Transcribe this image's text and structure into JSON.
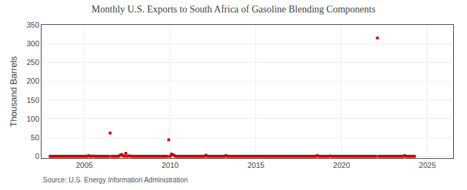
{
  "chart_data": {
    "type": "scatter",
    "title": "Monthly U.S. Exports to South Africa of Gasoline Blending Components",
    "ylabel": "Thousand Barrels",
    "annotations": [
      "Source: U.S. Energy Information Administration"
    ],
    "color": "#cc0000",
    "marker": "square",
    "grid": true,
    "xlim": [
      2002.5,
      2026.5
    ],
    "xticks": [
      2005,
      2010,
      2015,
      2020,
      2025
    ],
    "ylim": [
      -5,
      350
    ],
    "yticks": [
      0,
      50,
      100,
      150,
      200,
      250,
      300,
      350
    ],
    "x": [
      2003.0,
      2003.083,
      2003.167,
      2003.25,
      2003.333,
      2003.417,
      2003.5,
      2003.583,
      2003.667,
      2003.75,
      2003.833,
      2003.917,
      2004.0,
      2004.083,
      2004.167,
      2004.25,
      2004.333,
      2004.417,
      2004.5,
      2004.583,
      2004.667,
      2004.75,
      2004.833,
      2004.917,
      2005.0,
      2005.083,
      2005.167,
      2005.25,
      2005.333,
      2005.417,
      2005.5,
      2005.583,
      2005.667,
      2005.75,
      2005.833,
      2005.917,
      2006.0,
      2006.083,
      2006.167,
      2006.25,
      2006.333,
      2006.417,
      2006.5,
      2006.583,
      2006.667,
      2006.75,
      2006.833,
      2006.917,
      2007.0,
      2007.083,
      2007.167,
      2007.25,
      2007.333,
      2007.417,
      2007.5,
      2007.583,
      2007.667,
      2007.75,
      2007.833,
      2007.917,
      2008.0,
      2008.083,
      2008.167,
      2008.25,
      2008.333,
      2008.417,
      2008.5,
      2008.583,
      2008.667,
      2008.75,
      2008.833,
      2008.917,
      2009.0,
      2009.083,
      2009.167,
      2009.25,
      2009.333,
      2009.417,
      2009.5,
      2009.583,
      2009.667,
      2009.75,
      2009.833,
      2009.917,
      2010.0,
      2010.083,
      2010.167,
      2010.25,
      2010.333,
      2010.417,
      2010.5,
      2010.583,
      2010.667,
      2010.75,
      2010.833,
      2010.917,
      2011.0,
      2011.083,
      2011.167,
      2011.25,
      2011.333,
      2011.417,
      2011.5,
      2011.583,
      2011.667,
      2011.75,
      2011.833,
      2011.917,
      2012.0,
      2012.083,
      2012.167,
      2012.25,
      2012.333,
      2012.417,
      2012.5,
      2012.583,
      2012.667,
      2012.75,
      2012.833,
      2012.917,
      2013.0,
      2013.083,
      2013.167,
      2013.25,
      2013.333,
      2013.417,
      2013.5,
      2013.583,
      2013.667,
      2013.75,
      2013.833,
      2013.917,
      2014.0,
      2014.083,
      2014.167,
      2014.25,
      2014.333,
      2014.417,
      2014.5,
      2014.583,
      2014.667,
      2014.75,
      2014.833,
      2014.917,
      2015.0,
      2015.083,
      2015.167,
      2015.25,
      2015.333,
      2015.417,
      2015.5,
      2015.583,
      2015.667,
      2015.75,
      2015.833,
      2015.917,
      2016.0,
      2016.083,
      2016.167,
      2016.25,
      2016.333,
      2016.417,
      2016.5,
      2016.583,
      2016.667,
      2016.75,
      2016.833,
      2016.917,
      2017.0,
      2017.083,
      2017.167,
      2017.25,
      2017.333,
      2017.417,
      2017.5,
      2017.583,
      2017.667,
      2017.75,
      2017.833,
      2017.917,
      2018.0,
      2018.083,
      2018.167,
      2018.25,
      2018.333,
      2018.417,
      2018.5,
      2018.583,
      2018.667,
      2018.75,
      2018.833,
      2018.917,
      2019.0,
      2019.083,
      2019.167,
      2019.25,
      2019.333,
      2019.417,
      2019.5,
      2019.583,
      2019.667,
      2019.75,
      2019.833,
      2019.917,
      2020.0,
      2020.083,
      2020.167,
      2020.25,
      2020.333,
      2020.417,
      2020.5,
      2020.583,
      2020.667,
      2020.75,
      2020.833,
      2020.917,
      2021.0,
      2021.083,
      2021.167,
      2021.25,
      2021.333,
      2021.417,
      2021.5,
      2021.583,
      2021.667,
      2021.75,
      2021.833,
      2021.917,
      2022.0,
      2022.083,
      2022.167,
      2022.25,
      2022.333,
      2022.417,
      2022.5,
      2022.583,
      2022.667,
      2022.75,
      2022.833,
      2022.917,
      2023.0,
      2023.083,
      2023.167,
      2023.25,
      2023.333,
      2023.417,
      2023.5,
      2023.583,
      2023.667,
      2023.75,
      2023.833,
      2023.917,
      2024.0,
      2024.083,
      2024.167,
      2024.25
    ],
    "values": [
      0,
      0,
      0,
      0,
      0,
      0,
      0,
      0,
      0,
      0,
      0,
      0,
      0,
      0,
      0,
      0,
      0,
      0,
      0,
      0,
      0,
      0,
      0,
      0,
      0,
      0,
      0,
      2,
      0,
      0,
      1,
      0,
      0,
      0,
      0,
      0,
      0,
      0,
      0,
      0,
      0,
      0,
      62,
      0,
      0,
      0,
      0,
      0,
      0,
      3,
      5,
      2,
      0,
      8,
      0,
      1,
      1,
      0,
      0,
      0,
      0,
      0,
      0,
      0,
      0,
      0,
      0,
      0,
      0,
      0,
      0,
      0,
      0,
      0,
      0,
      0,
      0,
      0,
      0,
      0,
      0,
      0,
      0,
      44,
      0,
      6,
      4,
      2,
      0,
      0,
      0,
      0,
      0,
      0,
      0,
      0,
      0,
      0,
      0,
      0,
      0,
      0,
      0,
      0,
      0,
      0,
      0,
      0,
      0,
      3,
      0,
      0,
      0,
      0,
      0,
      0,
      0,
      0,
      0,
      0,
      0,
      0,
      0,
      2,
      0,
      0,
      0,
      0,
      0,
      0,
      0,
      0,
      0,
      0,
      0,
      0,
      0,
      0,
      0,
      0,
      0,
      0,
      0,
      0,
      0,
      0,
      0,
      0,
      0,
      0,
      0,
      0,
      0,
      0,
      0,
      0,
      0,
      0,
      0,
      0,
      0,
      0,
      0,
      0,
      0,
      0,
      0,
      0,
      0,
      0,
      0,
      0,
      0,
      0,
      0,
      0,
      0,
      0,
      0,
      0,
      0,
      0,
      0,
      0,
      0,
      0,
      0,
      2,
      0,
      0,
      0,
      0,
      0,
      0,
      0,
      0,
      1,
      0,
      0,
      0,
      0,
      0,
      0,
      0,
      0,
      0,
      0,
      0,
      0,
      0,
      0,
      0,
      0,
      0,
      0,
      0,
      0,
      0,
      0,
      0,
      0,
      0,
      0,
      0,
      0,
      0,
      0,
      0,
      0,
      315,
      0,
      0,
      0,
      0,
      0,
      0,
      0,
      0,
      0,
      0,
      0,
      0,
      0,
      0,
      0,
      0,
      0,
      0,
      2,
      0,
      0,
      0,
      0,
      0,
      0,
      0
    ]
  }
}
